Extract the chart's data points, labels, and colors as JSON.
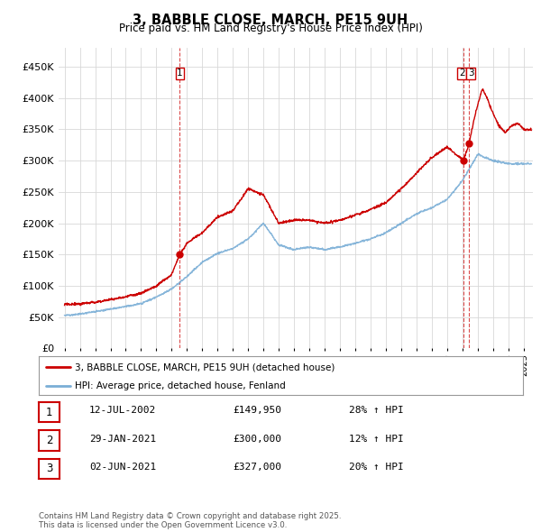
{
  "title": "3, BABBLE CLOSE, MARCH, PE15 9UH",
  "subtitle": "Price paid vs. HM Land Registry's House Price Index (HPI)",
  "legend_line1": "3, BABBLE CLOSE, MARCH, PE15 9UH (detached house)",
  "legend_line2": "HPI: Average price, detached house, Fenland",
  "footer": "Contains HM Land Registry data © Crown copyright and database right 2025.\nThis data is licensed under the Open Government Licence v3.0.",
  "table": [
    {
      "num": "1",
      "date": "12-JUL-2002",
      "price": "£149,950",
      "change": "28% ↑ HPI"
    },
    {
      "num": "2",
      "date": "29-JAN-2021",
      "price": "£300,000",
      "change": "12% ↑ HPI"
    },
    {
      "num": "3",
      "date": "02-JUN-2021",
      "price": "£327,000",
      "change": "20% ↑ HPI"
    }
  ],
  "vline1_year": 2002.53,
  "vline2_year": 2021.07,
  "vline3_year": 2021.43,
  "red_color": "#cc0000",
  "blue_color": "#7aaed6",
  "background_color": "#ffffff",
  "grid_color": "#d8d8d8",
  "ylim": [
    0,
    480000
  ],
  "yticks": [
    0,
    50000,
    100000,
    150000,
    200000,
    250000,
    300000,
    350000,
    400000,
    450000
  ],
  "xlim_start": 1994.6,
  "xlim_end": 2025.6,
  "hpi_points": [
    [
      1995,
      53000
    ],
    [
      1996,
      55000
    ],
    [
      1997,
      59000
    ],
    [
      1998,
      63000
    ],
    [
      1999,
      67000
    ],
    [
      2000,
      72000
    ],
    [
      2001,
      82000
    ],
    [
      2002,
      95000
    ],
    [
      2003,
      115000
    ],
    [
      2004,
      138000
    ],
    [
      2005,
      152000
    ],
    [
      2006,
      160000
    ],
    [
      2007,
      175000
    ],
    [
      2008,
      200000
    ],
    [
      2009,
      165000
    ],
    [
      2010,
      158000
    ],
    [
      2011,
      162000
    ],
    [
      2012,
      158000
    ],
    [
      2013,
      162000
    ],
    [
      2014,
      168000
    ],
    [
      2015,
      175000
    ],
    [
      2016,
      185000
    ],
    [
      2017,
      200000
    ],
    [
      2018,
      215000
    ],
    [
      2019,
      225000
    ],
    [
      2020,
      238000
    ],
    [
      2021,
      268000
    ],
    [
      2022,
      310000
    ],
    [
      2023,
      300000
    ],
    [
      2024,
      295000
    ],
    [
      2025,
      295000
    ]
  ],
  "red_points": [
    [
      1995,
      70000
    ],
    [
      1996,
      71000
    ],
    [
      1997,
      74000
    ],
    [
      1998,
      78000
    ],
    [
      1999,
      83000
    ],
    [
      2000,
      88000
    ],
    [
      2001,
      100000
    ],
    [
      2002,
      118000
    ],
    [
      2002.53,
      149950
    ],
    [
      2003,
      168000
    ],
    [
      2004,
      185000
    ],
    [
      2005,
      210000
    ],
    [
      2006,
      220000
    ],
    [
      2007,
      255000
    ],
    [
      2008,
      245000
    ],
    [
      2009,
      200000
    ],
    [
      2010,
      205000
    ],
    [
      2011,
      205000
    ],
    [
      2012,
      200000
    ],
    [
      2013,
      205000
    ],
    [
      2014,
      213000
    ],
    [
      2015,
      222000
    ],
    [
      2016,
      233000
    ],
    [
      2017,
      255000
    ],
    [
      2018,
      280000
    ],
    [
      2019,
      305000
    ],
    [
      2020,
      322000
    ],
    [
      2021.07,
      300000
    ],
    [
      2021.43,
      327000
    ],
    [
      2021.7,
      360000
    ],
    [
      2022.0,
      390000
    ],
    [
      2022.3,
      415000
    ],
    [
      2022.6,
      400000
    ],
    [
      2023.0,
      375000
    ],
    [
      2023.4,
      355000
    ],
    [
      2023.8,
      345000
    ],
    [
      2024.2,
      355000
    ],
    [
      2024.6,
      360000
    ],
    [
      2025.0,
      350000
    ]
  ]
}
